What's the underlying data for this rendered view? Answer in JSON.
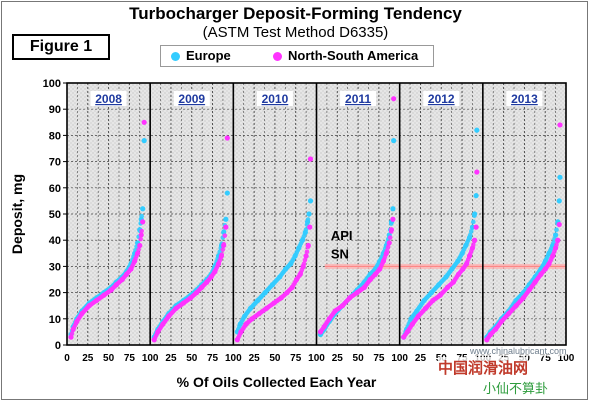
{
  "header": {
    "title": "Turbocharger Deposit-Forming Tendency",
    "subtitle": "(ASTM Test Method D6335)",
    "figure_label": "Figure 1"
  },
  "watermark": {
    "site": "www.chinalubricant.com",
    "brand": "中国润滑油网",
    "account": "小仙不算卦"
  },
  "colors": {
    "europe": "#33ccff",
    "north_south_america": "#ff33ff",
    "api_sn_line": "#ff9f9f",
    "plot_background": "#e4e4e4"
  },
  "chart_data": {
    "type": "scatter",
    "ylabel": "Deposit, mg",
    "xlabel": "% Of Oils Collected Each Year",
    "ylim": [
      0,
      100
    ],
    "y_ticks": [
      "0",
      "10",
      "20",
      "30",
      "40",
      "50",
      "60",
      "70",
      "80",
      "90",
      "100"
    ],
    "x_ticks": [
      "0",
      "25",
      "50",
      "75",
      "100",
      "25",
      "50",
      "75",
      "100",
      "25",
      "50",
      "75",
      "100",
      "25",
      "50",
      "75",
      "100",
      "25",
      "50",
      "75",
      "100",
      "25",
      "50",
      "75",
      "100"
    ],
    "panels": [
      "2008",
      "2009",
      "2010",
      "2011",
      "2012",
      "2013"
    ],
    "legend": [
      "Europe",
      "North-South America"
    ],
    "legend_position": "top",
    "grid": true,
    "annotation": {
      "text_line1": "API",
      "text_line2": "SN",
      "limit_value": 30
    },
    "series": [
      {
        "name": "Europe",
        "color": "#33ccff",
        "panels": [
          {
            "year": "2008",
            "x": [
              0,
              3,
              8,
              15,
              25,
              35,
              45,
              55,
              62,
              70,
              76,
              82,
              87,
              91,
              94,
              96,
              98,
              100
            ],
            "y": [
              4,
              7,
              10,
              13,
              16,
              18,
              20,
              22,
              24,
              26,
              28,
              31,
              35,
              39,
              44,
              48,
              52,
              78
            ]
          },
          {
            "year": "2009",
            "x": [
              0,
              5,
              12,
              20,
              30,
              40,
              50,
              58,
              65,
              72,
              78,
              83,
              88,
              92,
              95,
              98,
              100
            ],
            "y": [
              3,
              6,
              9,
              12,
              15,
              17,
              19,
              21,
              23,
              25,
              27,
              30,
              34,
              38,
              43,
              48,
              58
            ]
          },
          {
            "year": "2010",
            "x": [
              0,
              4,
              10,
              18,
              28,
              38,
              48,
              58,
              66,
              73,
              79,
              84,
              89,
              93,
              96,
              98,
              100
            ],
            "y": [
              5,
              8,
              11,
              14,
              17,
              20,
              23,
              26,
              29,
              31,
              34,
              37,
              40,
              43,
              47,
              50,
              55
            ]
          },
          {
            "year": "2011",
            "x": [
              0,
              5,
              12,
              20,
              30,
              40,
              50,
              60,
              68,
              75,
              81,
              86,
              90,
              94,
              97,
              99,
              100
            ],
            "y": [
              4,
              6,
              9,
              12,
              15,
              18,
              21,
              24,
              27,
              29,
              32,
              35,
              38,
              42,
              47,
              52,
              78
            ]
          },
          {
            "year": "2012",
            "x": [
              0,
              4,
              10,
              18,
              28,
              38,
              48,
              58,
              66,
              74,
              80,
              85,
              90,
              94,
              97,
              99,
              100
            ],
            "y": [
              3,
              6,
              10,
              13,
              17,
              20,
              23,
              26,
              29,
              32,
              35,
              38,
              41,
              45,
              50,
              57,
              82
            ]
          },
          {
            "year": "2013",
            "x": [
              0,
              5,
              12,
              20,
              30,
              40,
              50,
              58,
              66,
              74,
              80,
              85,
              90,
              94,
              97,
              99,
              100
            ],
            "y": [
              3,
              5,
              7,
              10,
              13,
              17,
              20,
              23,
              26,
              29,
              32,
              35,
              38,
              42,
              47,
              55,
              64
            ]
          }
        ]
      },
      {
        "name": "North-South America",
        "color": "#ff33ff",
        "panels": [
          {
            "year": "2008",
            "x": [
              0,
              3,
              8,
              15,
              25,
              35,
              45,
              55,
              62,
              70,
              76,
              82,
              87,
              91,
              94,
              96,
              98,
              100
            ],
            "y": [
              3,
              6,
              9,
              12,
              15,
              17,
              19,
              21,
              23,
              25,
              27,
              29,
              32,
              35,
              38,
              42,
              47,
              85
            ]
          },
          {
            "year": "2009",
            "x": [
              0,
              5,
              12,
              20,
              30,
              40,
              50,
              58,
              65,
              72,
              78,
              83,
              88,
              92,
              95,
              98,
              100
            ],
            "y": [
              2,
              5,
              8,
              11,
              14,
              16,
              18,
              20,
              22,
              24,
              26,
              28,
              31,
              34,
              38,
              45,
              79
            ]
          },
          {
            "year": "2010",
            "x": [
              0,
              5,
              12,
              20,
              30,
              40,
              50,
              60,
              68,
              75,
              81,
              86,
              90,
              94,
              97,
              99,
              100
            ],
            "y": [
              2,
              5,
              8,
              10,
              12,
              14,
              16,
              18,
              20,
              22,
              25,
              27,
              30,
              34,
              38,
              45,
              71
            ]
          },
          {
            "year": "2011",
            "x": [
              0,
              5,
              12,
              20,
              30,
              40,
              50,
              60,
              68,
              75,
              81,
              86,
              90,
              94,
              97,
              99,
              100
            ],
            "y": [
              5,
              7,
              10,
              13,
              15,
              18,
              20,
              22,
              25,
              27,
              29,
              32,
              35,
              39,
              44,
              48,
              94
            ]
          },
          {
            "year": "2012",
            "x": [
              0,
              5,
              12,
              20,
              30,
              40,
              50,
              60,
              68,
              75,
              81,
              86,
              90,
              94,
              97,
              99,
              100
            ],
            "y": [
              3,
              5,
              8,
              11,
              14,
              17,
              19,
              22,
              24,
              27,
              29,
              31,
              34,
              37,
              40,
              45,
              66
            ]
          },
          {
            "year": "2013",
            "x": [
              0,
              5,
              12,
              20,
              30,
              40,
              50,
              58,
              66,
              74,
              80,
              85,
              90,
              94,
              97,
              99,
              100
            ],
            "y": [
              2,
              4,
              6,
              9,
              12,
              15,
              18,
              21,
              24,
              27,
              29,
              31,
              34,
              37,
              40,
              46,
              84
            ]
          }
        ]
      }
    ]
  }
}
